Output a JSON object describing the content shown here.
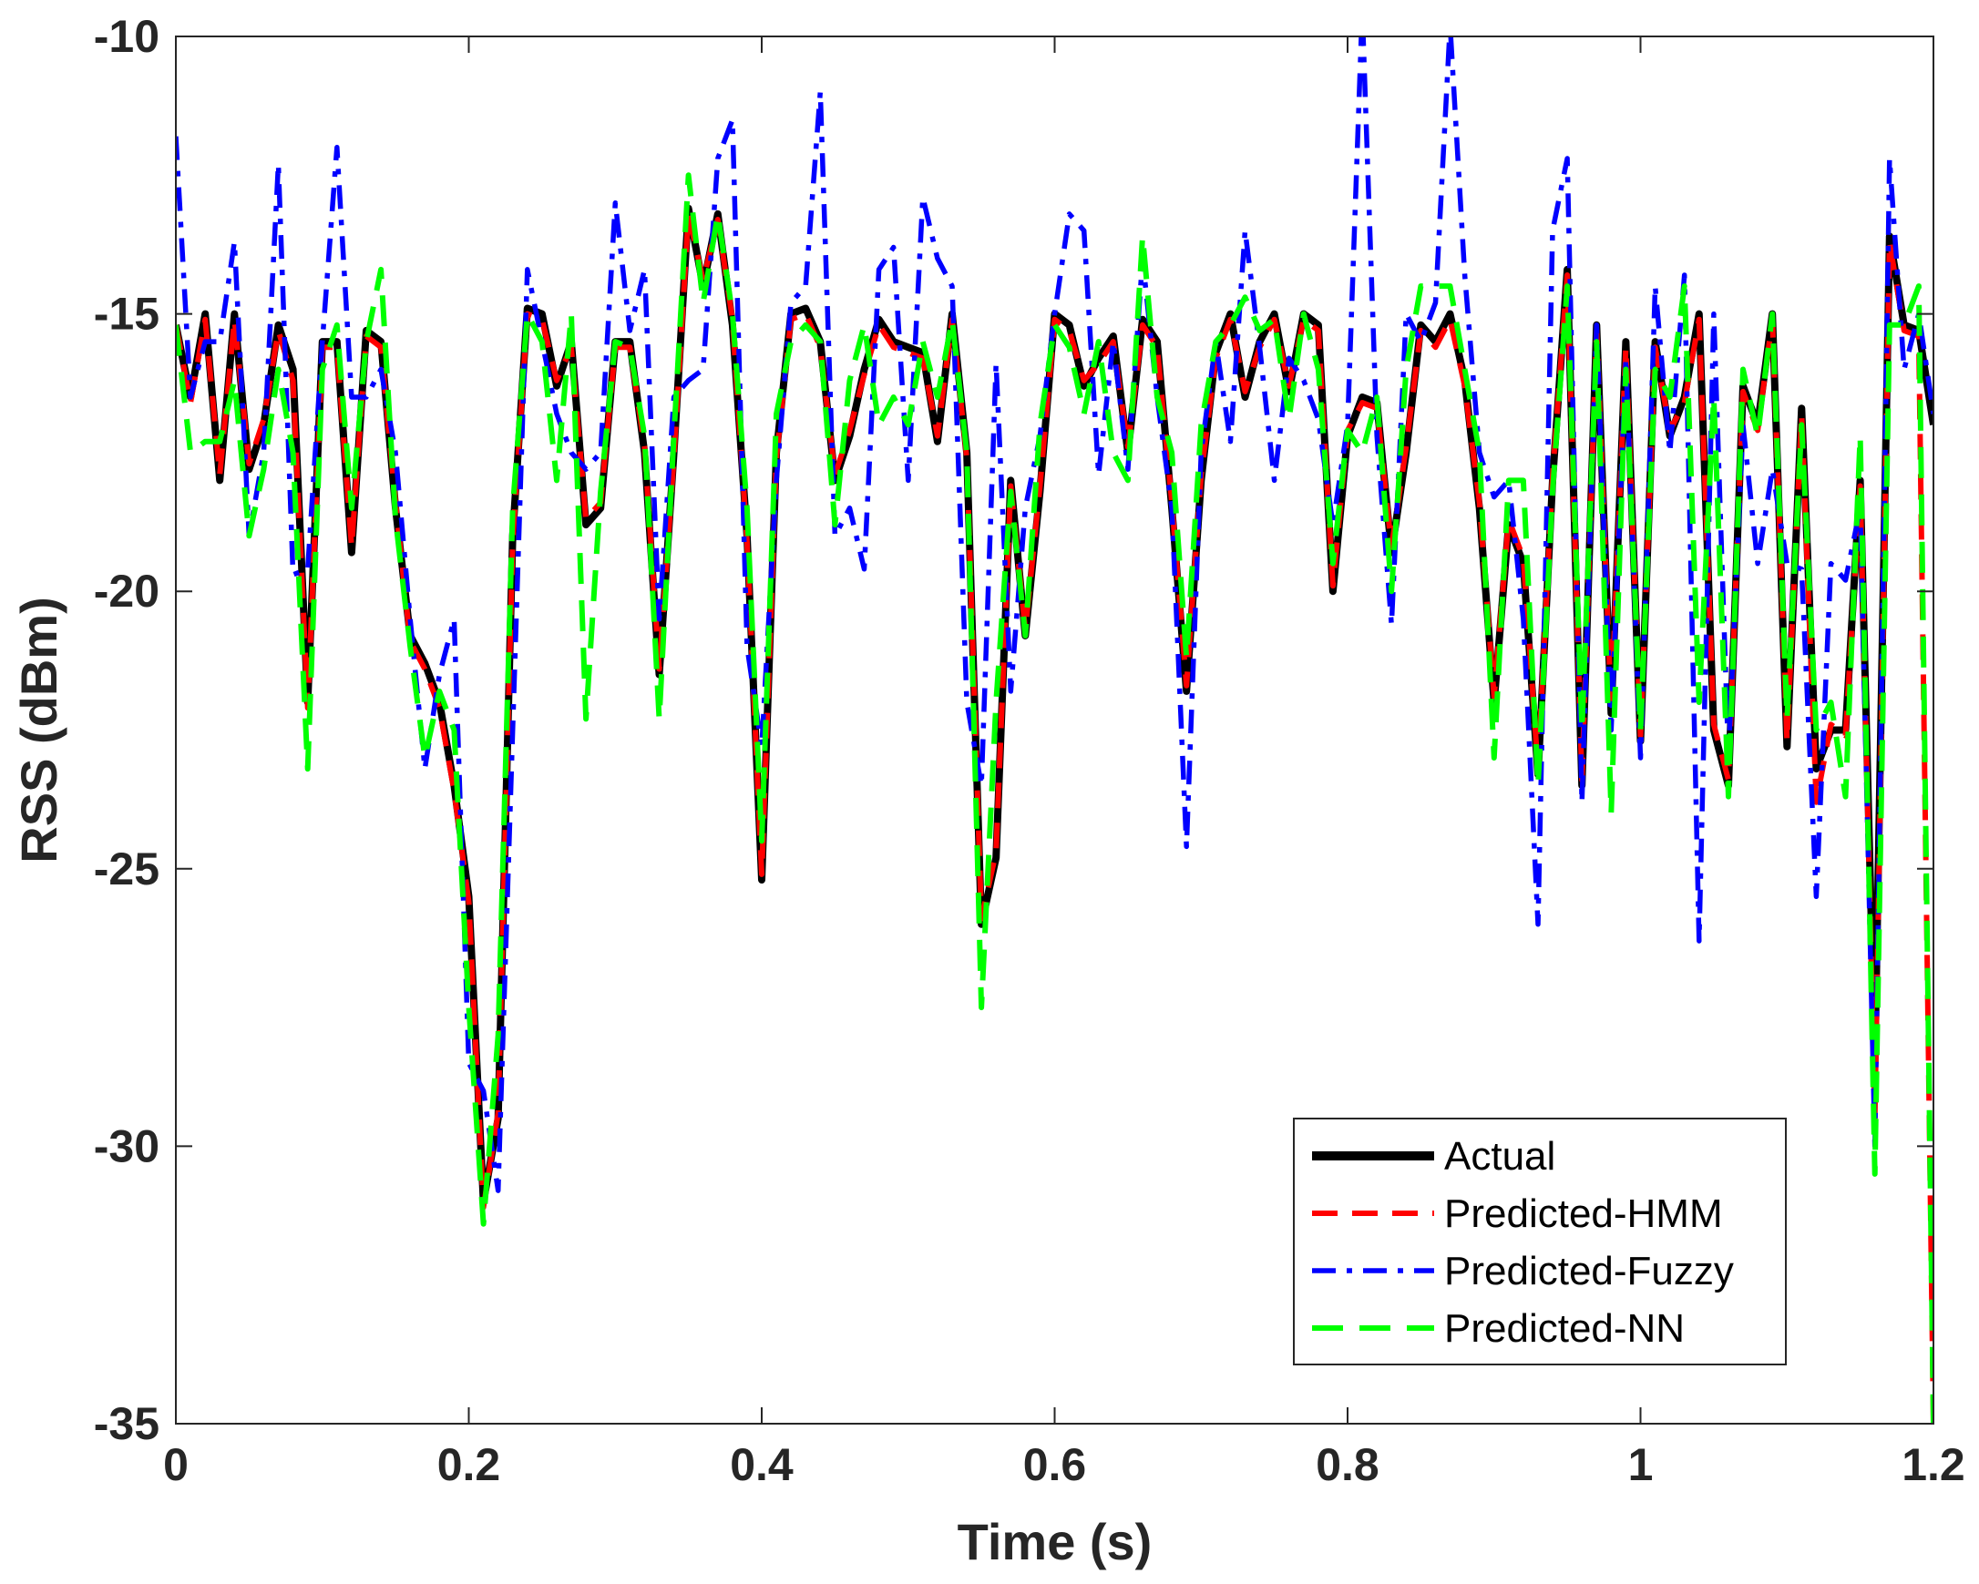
{
  "chart_data": {
    "type": "line",
    "title": "",
    "xlabel": "Time (s)",
    "ylabel": "RSS (dBm)",
    "xlim": [
      0,
      1.2
    ],
    "ylim": [
      -35,
      -10
    ],
    "xticks": [
      0,
      0.2,
      0.4,
      0.6,
      0.8,
      1,
      1.2
    ],
    "xtick_labels": [
      "0",
      "0.2",
      "0.4",
      "0.6",
      "0.8",
      "1",
      "1.2"
    ],
    "yticks": [
      -35,
      -30,
      -25,
      -20,
      -15,
      -10
    ],
    "ytick_labels": [
      "-35",
      "-30",
      "-25",
      "-20",
      "-15",
      "-10"
    ],
    "grid": false,
    "legend_position": "bottom-right",
    "x": [
      0,
      0.01,
      0.02,
      0.03,
      0.04,
      0.05,
      0.06,
      0.07,
      0.08,
      0.09,
      0.1,
      0.11,
      0.12,
      0.13,
      0.14,
      0.15,
      0.16,
      0.17,
      0.18,
      0.19,
      0.2,
      0.21,
      0.22,
      0.23,
      0.24,
      0.25,
      0.26,
      0.27,
      0.28,
      0.29,
      0.3,
      0.31,
      0.32,
      0.33,
      0.34,
      0.35,
      0.36,
      0.37,
      0.38,
      0.39,
      0.4,
      0.41,
      0.42,
      0.43,
      0.44,
      0.45,
      0.46,
      0.47,
      0.48,
      0.49,
      0.5,
      0.51,
      0.52,
      0.53,
      0.54,
      0.55,
      0.56,
      0.57,
      0.58,
      0.59,
      0.6,
      0.61,
      0.62,
      0.63,
      0.64,
      0.65,
      0.66,
      0.67,
      0.68,
      0.69,
      0.7,
      0.71,
      0.72,
      0.73,
      0.74,
      0.75,
      0.76,
      0.77,
      0.78,
      0.79,
      0.8,
      0.81,
      0.82,
      0.83,
      0.84,
      0.85,
      0.86,
      0.87,
      0.88,
      0.89,
      0.9,
      0.91,
      0.92,
      0.93,
      0.94,
      0.95,
      0.96,
      0.97,
      0.98,
      0.99,
      1.0,
      1.01,
      1.02,
      1.03,
      1.04,
      1.05,
      1.06,
      1.07,
      1.08,
      1.09,
      1.1,
      1.11,
      1.12,
      1.13,
      1.14,
      1.15,
      1.16,
      1.17,
      1.18,
      1.19,
      1.2
    ],
    "series": [
      {
        "name": "Actual",
        "color": "#000000",
        "style": "solid",
        "values": [
          -15.2,
          -16.5,
          -15,
          -18,
          -15,
          -17.8,
          -17,
          -15.2,
          -16,
          -22,
          -15.5,
          -15.5,
          -19.3,
          -15.3,
          -15.5,
          -18.5,
          -20.8,
          -21.3,
          -22,
          -23.5,
          -25.5,
          -31,
          -29.5,
          -19,
          -14.9,
          -15,
          -16.3,
          -15.5,
          -18.8,
          -18.5,
          -15.5,
          -15.5,
          -17.5,
          -21.5,
          -17.5,
          -13.1,
          -14.5,
          -13.2,
          -15.2,
          -19,
          -25.2,
          -17.5,
          -15,
          -14.9,
          -15.5,
          -18,
          -17.2,
          -16,
          -15.1,
          -15.5,
          -15.6,
          -15.7,
          -17.3,
          -15,
          -17.5,
          -26,
          -24.8,
          -18,
          -20.8,
          -18.2,
          -15,
          -15.2,
          -16.3,
          -15.8,
          -15.4,
          -17.5,
          -15.1,
          -15.5,
          -18.5,
          -21.8,
          -18,
          -15.7,
          -15,
          -16.5,
          -15.5,
          -15,
          -16.4,
          -15,
          -15.2,
          -20,
          -17.2,
          -16.5,
          -16.6,
          -19.3,
          -17.5,
          -15.2,
          -15.5,
          -15,
          -16.2,
          -18.5,
          -22,
          -18.8,
          -19.5,
          -23.3,
          -18,
          -14.2,
          -23.5,
          -15.2,
          -22.2,
          -15.5,
          -22.7,
          -15.5,
          -17.2,
          -16.5,
          -15,
          -22.5,
          -23.5,
          -16.3,
          -17,
          -15,
          -22.8,
          -16.7,
          -23.2,
          -22.5,
          -22.5,
          -18,
          -28.5,
          -13.6,
          -15.2,
          -15.3,
          -17
        ]
      },
      {
        "name": "Predicted-HMM",
        "color": "#ff0000",
        "style": "dashed",
        "values": [
          -15.2,
          -16.6,
          -15.1,
          -17.9,
          -15.1,
          -17.7,
          -16.9,
          -15.3,
          -16.2,
          -22.1,
          -15.6,
          -15.6,
          -19.2,
          -15.4,
          -15.6,
          -18.4,
          -20.9,
          -21.4,
          -22.1,
          -23.6,
          -25.6,
          -31.1,
          -29.4,
          -19.1,
          -15,
          -15.1,
          -16.2,
          -15.6,
          -18.7,
          -18.4,
          -15.6,
          -15.6,
          -17.4,
          -21.4,
          -17.6,
          -13.2,
          -14.4,
          -13.3,
          -15.1,
          -19.1,
          -25.1,
          -17.6,
          -15.1,
          -15,
          -15.6,
          -17.9,
          -17.1,
          -16.1,
          -15.2,
          -15.6,
          -15.7,
          -15.8,
          -17.2,
          -15.1,
          -17.6,
          -25.9,
          -24.7,
          -18.1,
          -20.7,
          -18.1,
          -15.1,
          -15.3,
          -16.2,
          -15.9,
          -15.5,
          -17.4,
          -15.2,
          -15.6,
          -18.4,
          -21.7,
          -17.9,
          -15.8,
          -15.1,
          -16.4,
          -15.6,
          -15.1,
          -16.3,
          -15.1,
          -15.3,
          -19.9,
          -17.1,
          -16.6,
          -16.7,
          -19.2,
          -17.4,
          -15.3,
          -15.6,
          -15.1,
          -16.3,
          -18.4,
          -21.9,
          -18.7,
          -19.4,
          -23.2,
          -17.9,
          -14.3,
          -23.4,
          -15.3,
          -22.1,
          -15.6,
          -22.6,
          -15.6,
          -17.1,
          -16.6,
          -15.1,
          -22.4,
          -23.4,
          -16.4,
          -17.1,
          -15.1,
          -22.7,
          -16.8,
          -23.8,
          -22.4,
          -22.6,
          -18.1,
          -29.5,
          -13.7,
          -15.3,
          -15.4,
          -35
        ]
      },
      {
        "name": "Predicted-Fuzzy",
        "color": "#0000ff",
        "style": "dashdot",
        "values": [
          -11.8,
          -16.5,
          -15.5,
          -15.5,
          -13.7,
          -19,
          -17.5,
          -12.3,
          -19.7,
          -19.6,
          -15.5,
          -12,
          -16.5,
          -16.5,
          -16,
          -17.5,
          -20.5,
          -23.2,
          -21.5,
          -20.5,
          -28.5,
          -29,
          -30.8,
          -22.5,
          -14.2,
          -15.5,
          -16.8,
          -17.5,
          -17.8,
          -17.5,
          -13,
          -15.3,
          -14.2,
          -20.5,
          -16.5,
          -16.2,
          -16,
          -12.2,
          -11.5,
          -21,
          -22.8,
          -18,
          -14.8,
          -14.5,
          -11,
          -19,
          -18.5,
          -19.6,
          -14.2,
          -13.8,
          -18,
          -12.9,
          -14,
          -14.5,
          -22,
          -23.5,
          -15.9,
          -21.8,
          -18.5,
          -17.2,
          -15,
          -13.2,
          -13.5,
          -17.9,
          -15.5,
          -17.8,
          -14,
          -16.5,
          -18.5,
          -24.6,
          -17.5,
          -15.5,
          -17.3,
          -13.5,
          -15.6,
          -18,
          -15.8,
          -16.2,
          -16.9,
          -18.8,
          -17,
          -9.5,
          -17.2,
          -20.6,
          -15,
          -15.5,
          -14.8,
          -9.8,
          -14.3,
          -17.5,
          -18.3,
          -18,
          -20.5,
          -26,
          -13.5,
          -12.2,
          -23.8,
          -15.2,
          -22.5,
          -15.8,
          -23,
          -14.5,
          -17.5,
          -14.3,
          -26.3,
          -15,
          -23,
          -17,
          -19.5,
          -17.8,
          -19.5,
          -19.6,
          -25.5,
          -19.5,
          -19.8,
          -18.5,
          -30,
          -12.2,
          -16,
          -15,
          -16.8
        ]
      },
      {
        "name": "Predicted-NN",
        "color": "#00ff00",
        "style": "dashed",
        "values": [
          -15.2,
          -17.5,
          -17.3,
          -17.3,
          -16.2,
          -19,
          -17.8,
          -16,
          -17.5,
          -23.2,
          -16,
          -15.2,
          -18.5,
          -15.5,
          -14.2,
          -18.7,
          -21,
          -23,
          -21.8,
          -22.5,
          -27.5,
          -31.4,
          -28,
          -18.5,
          -15,
          -15.5,
          -18,
          -15,
          -22.3,
          -18.2,
          -15.5,
          -15.6,
          -17.2,
          -22.3,
          -17.2,
          -12.5,
          -14.8,
          -13.2,
          -15,
          -18.5,
          -24.5,
          -16.8,
          -15.5,
          -15.2,
          -15.5,
          -18.8,
          -16.2,
          -15.2,
          -17,
          -16.5,
          -17,
          -15.5,
          -16.5,
          -15.1,
          -17.5,
          -27.5,
          -22,
          -18.2,
          -20.8,
          -17,
          -15.2,
          -15.6,
          -16.8,
          -15.5,
          -17.5,
          -18,
          -13.6,
          -16.5,
          -17.5,
          -21.2,
          -17,
          -15.5,
          -15.2,
          -14.7,
          -15.3,
          -15.1,
          -16.9,
          -15,
          -16,
          -19.5,
          -17.1,
          -17.5,
          -16.5,
          -20,
          -16,
          -14.5,
          -14.5,
          -14.5,
          -16,
          -17.5,
          -23,
          -18,
          -18,
          -23.5,
          -18.2,
          -14.5,
          -22.5,
          -15.5,
          -24,
          -16,
          -22.5,
          -16,
          -16.5,
          -14.5,
          -22,
          -16.5,
          -23.7,
          -16,
          -17.2,
          -15,
          -22.3,
          -17,
          -22.5,
          -22,
          -23.7,
          -17.2,
          -30.5,
          -15.2,
          -15.2,
          -14.5,
          -35
        ]
      }
    ]
  }
}
